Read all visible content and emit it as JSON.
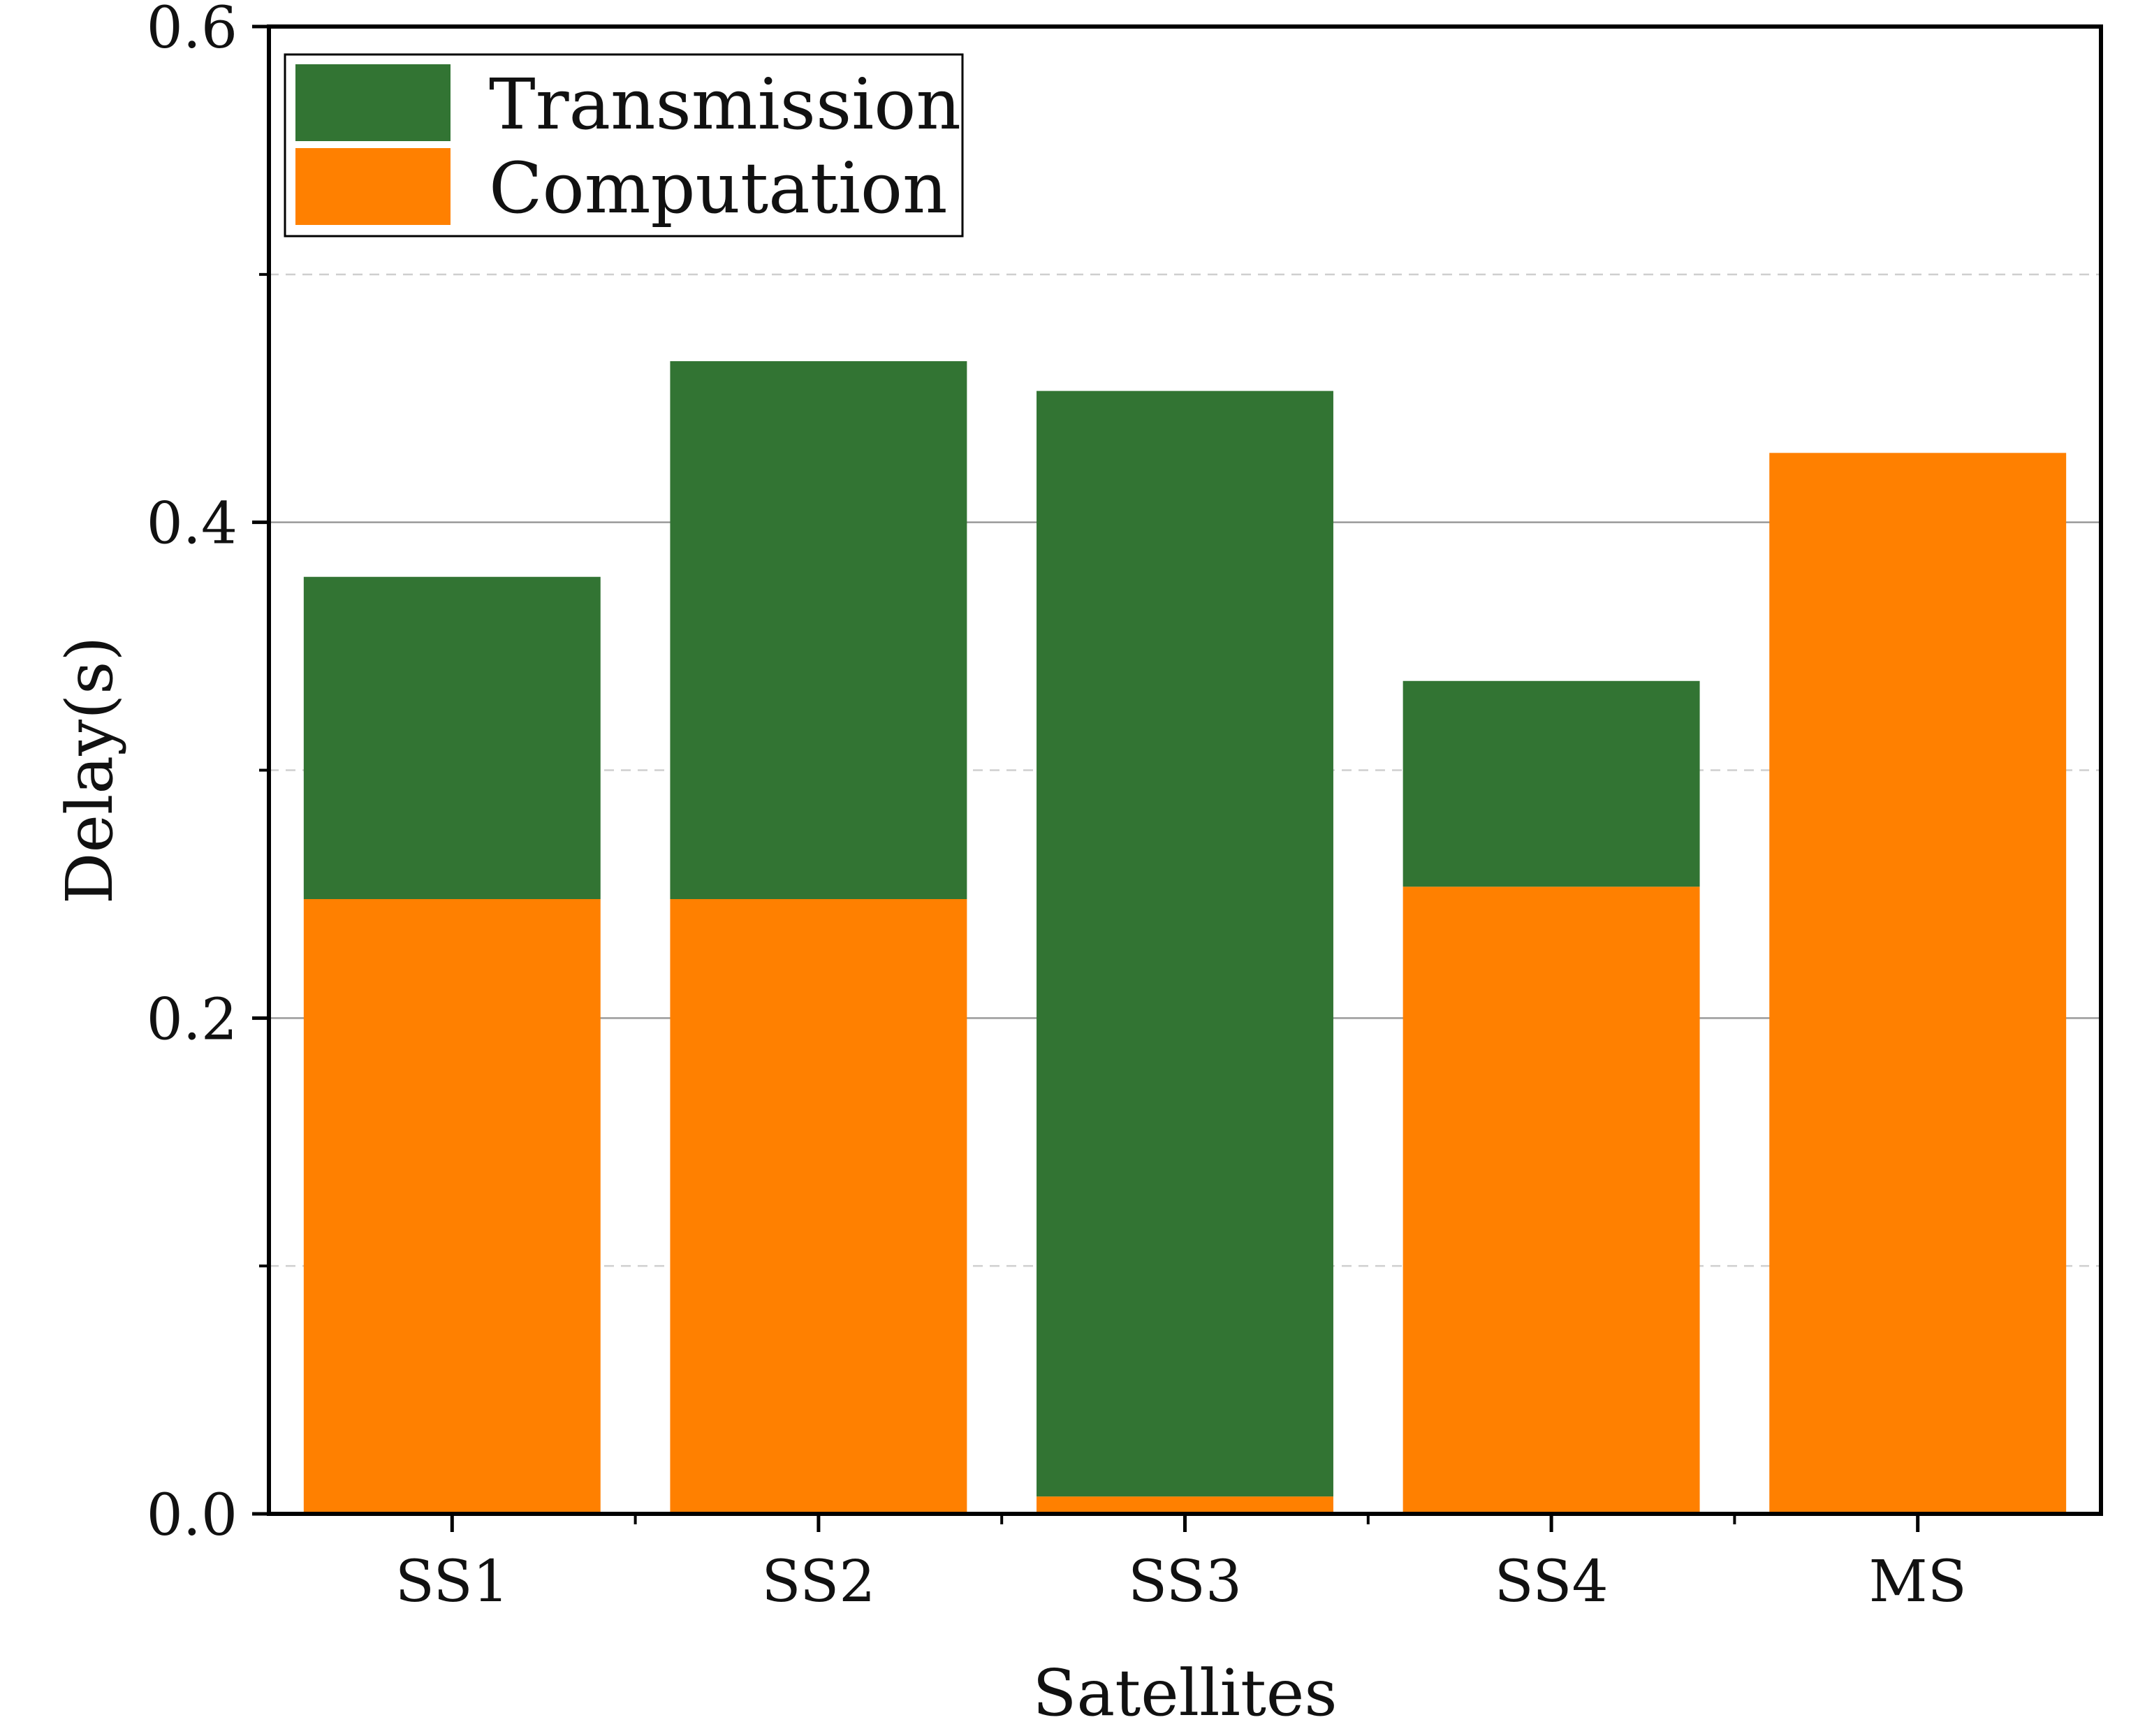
{
  "chart_data": {
    "type": "bar",
    "stacked": true,
    "title": "",
    "xlabel": "Satellites",
    "ylabel": "Delay(s)",
    "categories": [
      "SS1",
      "SS2",
      "SS3",
      "SS4",
      "MS"
    ],
    "ylim": [
      0,
      0.6
    ],
    "yticks": [
      "0.0",
      "0.2",
      "0.4",
      "0.6"
    ],
    "grid": {
      "major": "solid gray at 0.2 and 0.4",
      "minor": "dashed light gray at 0.1, 0.3 and 0.5"
    },
    "legend_position": "top-left",
    "series": [
      {
        "name": "Computation",
        "color": "#ff8000",
        "values": [
          0.248,
          0.248,
          0.007,
          0.253,
          0.428
        ]
      },
      {
        "name": "Transmission",
        "color": "#327433",
        "values": [
          0.13,
          0.217,
          0.446,
          0.083,
          0.0
        ]
      }
    ]
  }
}
